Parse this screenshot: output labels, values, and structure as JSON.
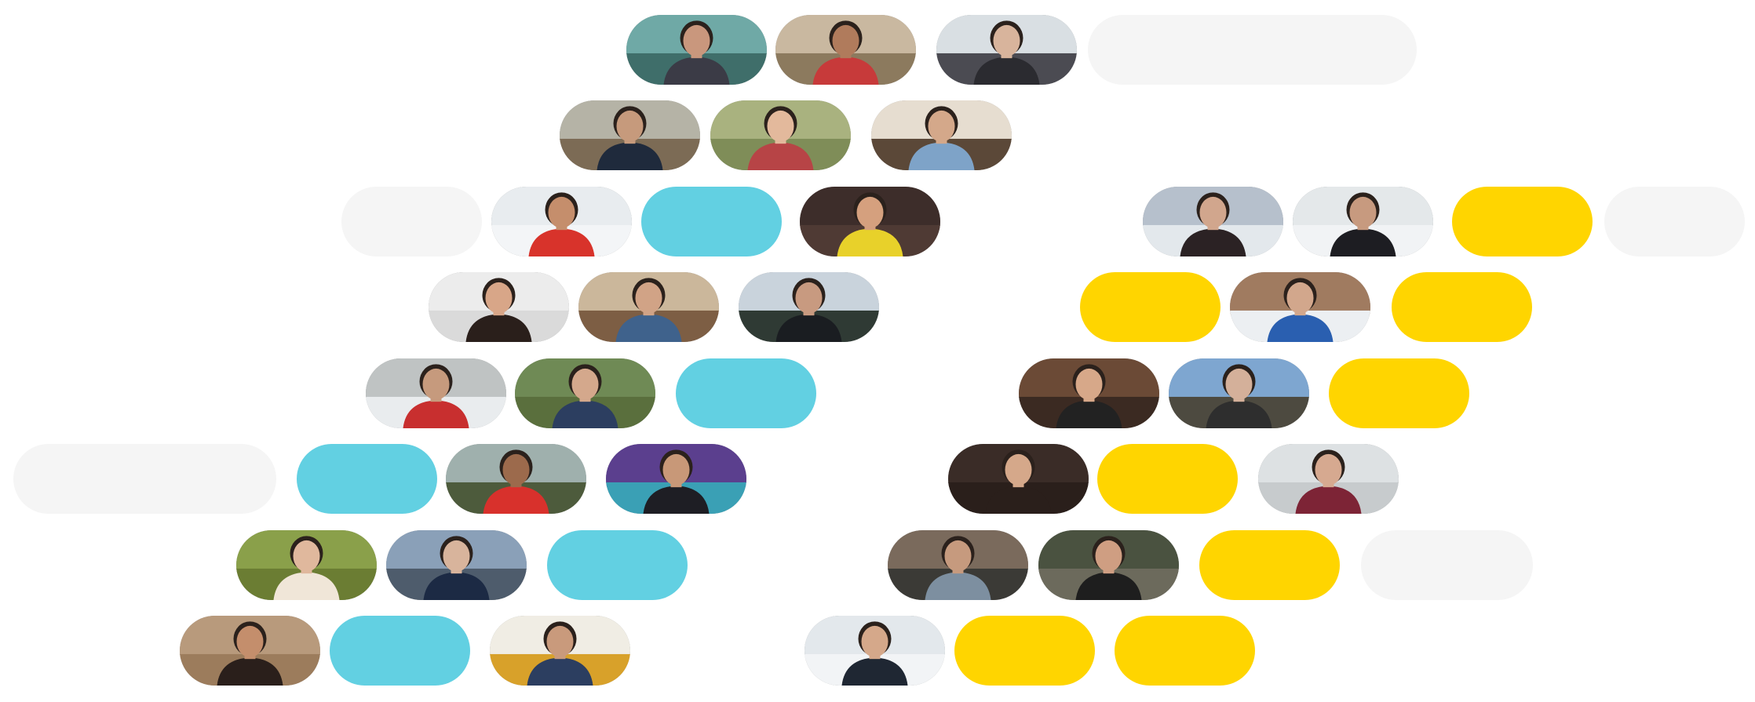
{
  "palette": {
    "blank": "#f5f5f5",
    "cyan": "#62d0e2",
    "yellow": "#ffd500",
    "background": "#ffffff"
  },
  "rows": [
    [
      {
        "kind": "photo",
        "subject": "person-in-hoodie-by-lake-photo",
        "sky": "#6fa9a6",
        "ground": "#3f6e6a",
        "skin": "#c9977d",
        "shirt": "#3b3b46"
      },
      {
        "kind": "photo",
        "subject": "woman-under-lights-photo",
        "sky": "#c9b8a0",
        "ground": "#8c7a5e",
        "skin": "#b07b5c",
        "shirt": "#c73a3a"
      },
      {
        "kind": "photo",
        "subject": "woman-at-window-photo",
        "sky": "#d9dfe3",
        "ground": "#4b4b52",
        "skin": "#d8b49c",
        "shirt": "#2b2b30"
      },
      {
        "kind": "blank"
      }
    ],
    [
      {
        "kind": "photo",
        "subject": "person-under-trees-photo",
        "sky": "#b5b3a6",
        "ground": "#7c6b55",
        "skin": "#c69a7c",
        "shirt": "#1f2a3c"
      },
      {
        "kind": "photo",
        "subject": "woman-in-knit-hat-photo",
        "sky": "#a9b27f",
        "ground": "#7f8d58",
        "skin": "#e3b99c",
        "shirt": "#b74446"
      },
      {
        "kind": "photo",
        "subject": "man-at-desk-photo",
        "sky": "#e6ddd0",
        "ground": "#5b4838",
        "skin": "#d4a88a",
        "shirt": "#7ea3c8"
      }
    ],
    [
      {
        "kind": "blank"
      },
      {
        "kind": "photo",
        "subject": "person-on-snowy-bench-photo",
        "sky": "#e8ecef",
        "ground": "#f3f5f7",
        "skin": "#c58e6c",
        "shirt": "#d8332b"
      },
      {
        "kind": "cyan"
      },
      {
        "kind": "photo",
        "subject": "man-in-yellow-jacket-photo",
        "sky": "#3d2d2a",
        "ground": "#4f3a34",
        "skin": "#d5a07e",
        "shirt": "#e8d12a"
      },
      {
        "kind": "photo",
        "subject": "woman-by-winter-lake-photo",
        "sky": "#b6c0cc",
        "ground": "#e3e8ec",
        "skin": "#d1a68d",
        "shirt": "#2b2224"
      },
      {
        "kind": "photo",
        "subject": "person-before-mountains-photo",
        "sky": "#e4e8ea",
        "ground": "#f1f3f5",
        "skin": "#c79a7f",
        "shirt": "#1d1d22"
      },
      {
        "kind": "yellow"
      },
      {
        "kind": "blank"
      }
    ],
    [
      {
        "kind": "photo",
        "subject": "smiling-woman-portrait-photo",
        "sky": "#ececec",
        "ground": "#dadada",
        "skin": "#d8a688",
        "shirt": "#2a1f1b"
      },
      {
        "kind": "photo",
        "subject": "man-with-guitar-photo",
        "sky": "#cbb79b",
        "ground": "#7d5e44",
        "skin": "#d1a386",
        "shirt": "#3f628c"
      },
      {
        "kind": "photo",
        "subject": "man-in-mountain-forest-photo",
        "sky": "#c9d3dc",
        "ground": "#2f3a34",
        "skin": "#c89a80",
        "shirt": "#1a1d21"
      },
      {
        "kind": "yellow"
      },
      {
        "kind": "photo",
        "subject": "person-in-helmet-on-snow-photo",
        "sky": "#a07b60",
        "ground": "#eceff2",
        "skin": "#d2a78c",
        "shirt": "#2a5fb0"
      },
      {
        "kind": "yellow"
      }
    ],
    [
      {
        "kind": "photo",
        "subject": "man-in-snowy-woods-photo",
        "sky": "#bfc3c3",
        "ground": "#e9ecee",
        "skin": "#c69a7d",
        "shirt": "#c82f2f"
      },
      {
        "kind": "photo",
        "subject": "woman-by-tree-photo",
        "sky": "#6f8a55",
        "ground": "#5a6f3d",
        "skin": "#d4a88c",
        "shirt": "#2c3e60"
      },
      {
        "kind": "cyan"
      },
      {
        "kind": "photo",
        "subject": "older-man-portrait-photo",
        "sky": "#6b4a36",
        "ground": "#3b2a22",
        "skin": "#d7a889",
        "shirt": "#222222"
      },
      {
        "kind": "photo",
        "subject": "bearded-man-outdoors-photo",
        "sky": "#7ea6d0",
        "ground": "#4d4a40",
        "skin": "#d4b09a",
        "shirt": "#2e2e2e"
      },
      {
        "kind": "yellow"
      }
    ],
    [
      {
        "kind": "blank"
      },
      {
        "kind": "cyan"
      },
      {
        "kind": "photo",
        "subject": "woman-on-horse-photo",
        "sky": "#9fb0ad",
        "ground": "#4d5b3c",
        "skin": "#9c6a4c",
        "shirt": "#d8312c"
      },
      {
        "kind": "photo",
        "subject": "man-with-mural-photo",
        "sky": "#5b3f8e",
        "ground": "#3aa0b5",
        "skin": "#c89878",
        "shirt": "#1e1e24"
      },
      {
        "kind": "photo",
        "subject": "man-close-portrait-photo",
        "sky": "#3a2c27",
        "ground": "#2a1f1b",
        "skin": "#d5a88a",
        "shirt": "#2a1f1b"
      },
      {
        "kind": "yellow"
      },
      {
        "kind": "photo",
        "subject": "man-with-dog-photo",
        "sky": "#dde1e3",
        "ground": "#c7cbcd",
        "skin": "#d6a990",
        "shirt": "#7d2436"
      }
    ],
    [
      {
        "kind": "photo",
        "subject": "woman-in-bamboo-photo",
        "sky": "#8aa04a",
        "ground": "#6b7d33",
        "skin": "#e0b89d",
        "shirt": "#f0e6d8"
      },
      {
        "kind": "photo",
        "subject": "woman-by-canal-photo",
        "sky": "#8aa0b8",
        "ground": "#4e5c6c",
        "skin": "#d8b49c",
        "shirt": "#1c2a44"
      },
      {
        "kind": "cyan"
      },
      {
        "kind": "photo",
        "subject": "hiker-by-lake-photo",
        "sky": "#7a6a5c",
        "ground": "#3b3a36",
        "skin": "#c69a7e",
        "shirt": "#7d8fa0"
      },
      {
        "kind": "photo",
        "subject": "smiling-woman-by-rock-photo",
        "sky": "#4a5240",
        "ground": "#6c6a5c",
        "skin": "#cf9e82",
        "shirt": "#1e1e1e"
      },
      {
        "kind": "yellow"
      },
      {
        "kind": "blank"
      }
    ],
    [
      {
        "kind": "photo",
        "subject": "man-in-dry-grass-photo",
        "sky": "#b89a7c",
        "ground": "#9c7c5c",
        "skin": "#c48e6c",
        "shirt": "#2a1f1b"
      },
      {
        "kind": "cyan"
      },
      {
        "kind": "photo",
        "subject": "woman-with-robot-photo",
        "sky": "#f0ede4",
        "ground": "#d8a12a",
        "skin": "#c99a7c",
        "shirt": "#2c3e60"
      },
      {
        "kind": "photo",
        "subject": "man-in-winter-hood-photo",
        "sky": "#e3e8ec",
        "ground": "#f2f4f6",
        "skin": "#d5a88a",
        "shirt": "#1f2733"
      },
      {
        "kind": "yellow"
      },
      {
        "kind": "yellow"
      }
    ]
  ]
}
